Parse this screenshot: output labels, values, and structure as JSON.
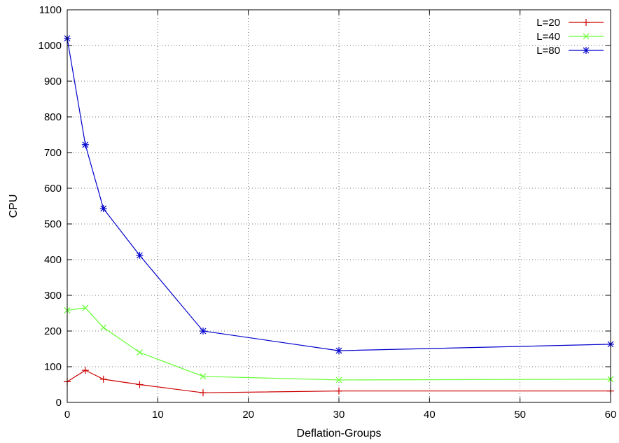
{
  "chart_data": {
    "type": "line",
    "title": "",
    "xlabel": "Deflation-Groups",
    "ylabel": "CPU",
    "xlim": [
      0,
      60
    ],
    "ylim": [
      0,
      1100
    ],
    "xticks": [
      0,
      10,
      20,
      30,
      40,
      50,
      60
    ],
    "yticks": [
      0,
      100,
      200,
      300,
      400,
      500,
      600,
      700,
      800,
      900,
      1000,
      1100
    ],
    "grid": true,
    "legend_position": "top-right",
    "x": [
      0,
      2,
      4,
      8,
      15,
      30,
      60
    ],
    "series": [
      {
        "name": "L=20",
        "color": "#cc0000",
        "marker": "plus",
        "values": [
          58,
          90,
          65,
          50,
          27,
          32,
          32
        ]
      },
      {
        "name": "L=40",
        "color": "#66ff33",
        "marker": "cross",
        "values": [
          258,
          265,
          210,
          140,
          73,
          63,
          65
        ]
      },
      {
        "name": "L=80",
        "color": "#0000cc",
        "marker": "star",
        "values": [
          1020,
          722,
          543,
          412,
          200,
          145,
          163
        ]
      }
    ]
  }
}
